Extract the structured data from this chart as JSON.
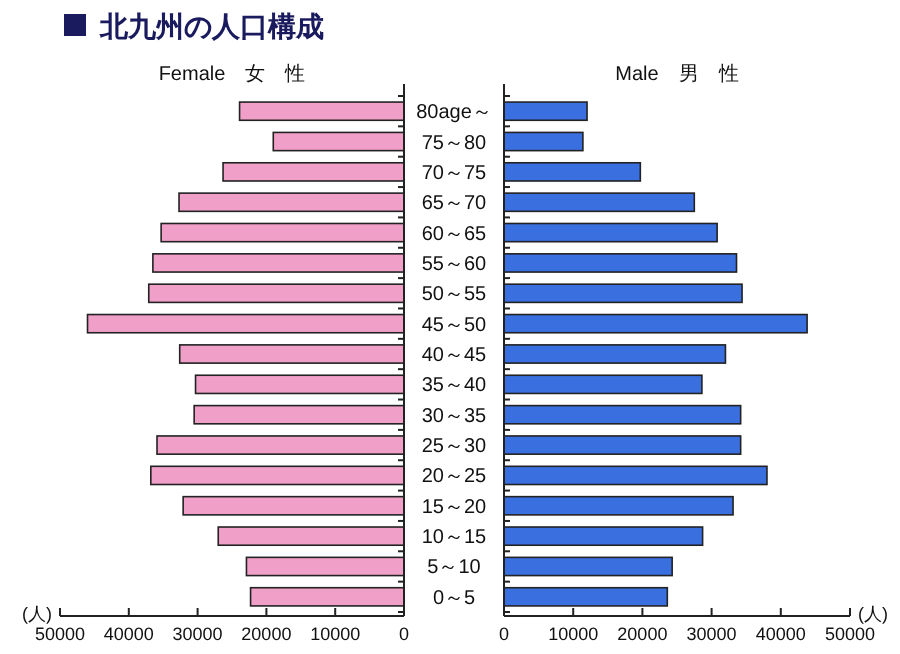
{
  "chart_data": [
    {
      "type": "bar",
      "orientation": "horizontal",
      "title": "北九州の人口構成",
      "xlabel": "(人)",
      "categories": [
        "80age～",
        "75～80",
        "70～75",
        "65～70",
        "60～65",
        "55～60",
        "50～55",
        "45～50",
        "40～45",
        "35～40",
        "30～35",
        "25～30",
        "20～25",
        "15～20",
        "10～15",
        "5～10",
        "0～5"
      ],
      "series": [
        {
          "name": "Female　女　性",
          "color": "#f0a0c8",
          "values": [
            23900,
            19000,
            26300,
            32700,
            35300,
            36500,
            37100,
            46000,
            32600,
            30300,
            30500,
            35900,
            36800,
            32100,
            27000,
            22900,
            22300
          ]
        }
      ],
      "xlim": [
        50000,
        0
      ],
      "xticks": [
        50000,
        40000,
        30000,
        20000,
        10000,
        0
      ]
    },
    {
      "type": "bar",
      "orientation": "horizontal",
      "xlabel": "(人)",
      "categories": [
        null,
        null,
        null,
        null,
        null,
        null,
        null,
        null,
        null,
        null,
        null,
        null,
        null,
        null,
        null,
        null,
        null
      ],
      "series": [
        {
          "name": "Male　男　性",
          "color": "#3a6fe0",
          "values": [
            12000,
            11400,
            19700,
            27500,
            30800,
            33600,
            34400,
            43800,
            32000,
            28600,
            34200,
            34200,
            38000,
            33100,
            28700,
            24300,
            23600
          ]
        }
      ],
      "xlim": [
        0,
        50000
      ],
      "xticks": [
        0,
        10000,
        20000,
        30000,
        40000,
        50000
      ]
    }
  ]
}
